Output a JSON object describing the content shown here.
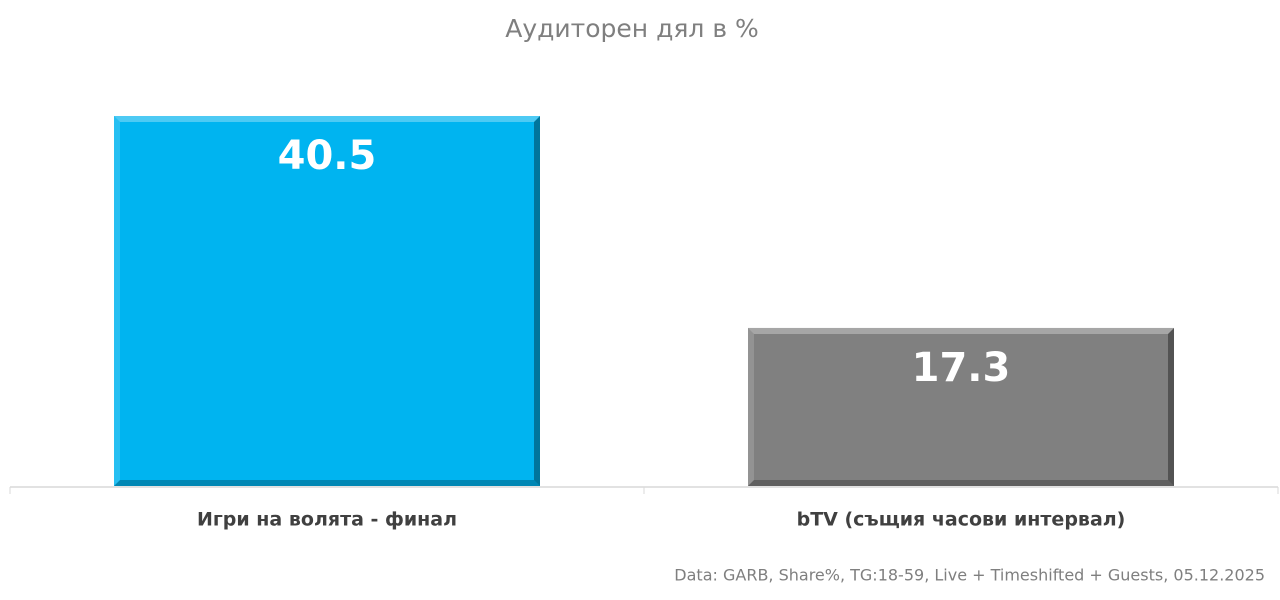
{
  "chart_data": {
    "type": "bar",
    "title": "Аудиторен дял в %",
    "categories": [
      "Игри на волята - финал",
      "bTV (същия часови интервал)"
    ],
    "values": [
      40.5,
      17.3
    ],
    "colors": [
      "#00b4f0",
      "#808080"
    ],
    "source": "Data: GARB, Share%, TG:18-59, Live + Timeshifted + Guests, 05.12.2025"
  }
}
